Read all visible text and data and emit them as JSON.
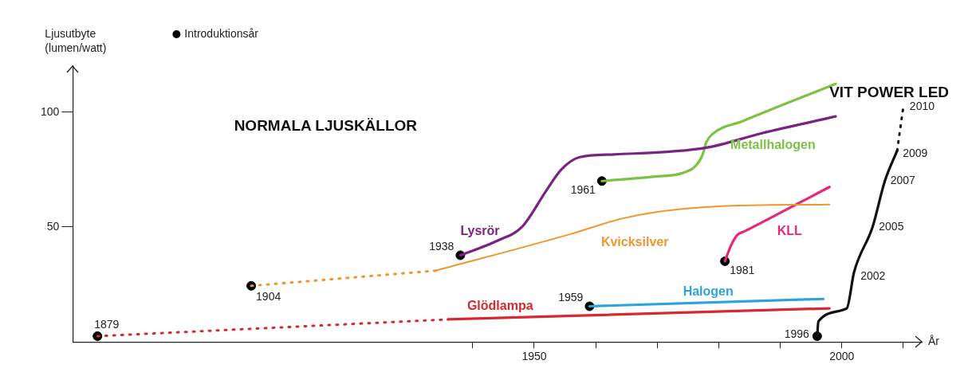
{
  "chart_data": {
    "type": "line",
    "xlabel": "År",
    "ylabel": "Ljusutbyte (lumen/watt)",
    "xlim": [
      1875,
      2013
    ],
    "ylim": [
      0,
      120
    ],
    "xticks": [
      {
        "value": 1940,
        "label": null
      },
      1950,
      {
        "value": 1960,
        "label": null
      },
      {
        "value": 1970,
        "label": null
      },
      {
        "value": 1980,
        "label": null
      },
      {
        "value": 1990,
        "label": null
      },
      2000,
      {
        "value": 2010,
        "label": null
      }
    ],
    "yticks": [
      50,
      100
    ],
    "legend": "top left",
    "series": [
      {
        "color": "#d7282f",
        "line_style": "dotted",
        "x": [
          1879,
          1936
        ],
        "values": [
          2.5,
          9.8
        ]
      },
      {
        "name": "Glödlampa",
        "color": "#d7282f",
        "x": [
          1936,
          1998
        ],
        "values": [
          9.8,
          14.6
        ]
      },
      {
        "color": "#f0962e",
        "line_style": "dotted",
        "x": [
          1904,
          1934
        ],
        "values": [
          24.4,
          31
        ]
      },
      {
        "name": "Kvicksilver",
        "color": "#f0962e",
        "x": [
          1934,
          1956,
          1964,
          1970,
          1980,
          1998
        ],
        "values": [
          31,
          47,
          53.5,
          56.6,
          59,
          59.8
        ]
      },
      {
        "name": "Lysrör",
        "color": "#7b2382",
        "x": [
          1938,
          1944,
          1948,
          1952,
          1954.4,
          1957.4,
          1963,
          1978,
          1987,
          1999
        ],
        "values": [
          37.7,
          44,
          50,
          66,
          75,
          80.4,
          81.6,
          84.5,
          90.8,
          98.1
        ]
      },
      {
        "name": "Halogen",
        "color": "#2aa3e0",
        "x": [
          1959,
          1997
        ],
        "values": [
          15.5,
          18.7
        ]
      },
      {
        "name": "Metallhalogen",
        "color": "#7dc242",
        "x": [
          1961,
          1969,
          1975.5,
          1977.3,
          1978,
          1979,
          1984,
          1999
        ],
        "values": [
          70,
          71.8,
          75,
          81,
          87,
          90.5,
          96.2,
          112.3
        ]
      },
      {
        "name": "KLL",
        "color": "#e6287a",
        "x": [
          1981,
          1982,
          1983,
          1984.2,
          1998
        ],
        "values": [
          35.1,
          42,
          46.5,
          48.1,
          67.4
        ]
      },
      {
        "name": "VIT POWER LED",
        "color": "#111111",
        "x": [
          1996,
          1996.2,
          2000.8,
          2002,
          2005,
          2007,
          2009
        ],
        "values": [
          2.5,
          8.9,
          14.6,
          30.4,
          50,
          70,
          83.2
        ]
      },
      {
        "color": "#111111",
        "line_style": "dotted",
        "x": [
          2009,
          2010
        ],
        "values": [
          83.2,
          102.2
        ]
      },
      {
        "name": "Introduktionsår",
        "type": "scatter",
        "marker": "circle",
        "color": "#000000",
        "x": [
          1879,
          1904,
          1938,
          1959,
          1961,
          1981,
          1996
        ],
        "values": [
          2.5,
          24.4,
          37.7,
          15.5,
          70,
          35.1,
          2.5
        ]
      }
    ],
    "annotations": [
      "NORMALA LJUSKÄLLOR",
      {
        "text": "1879",
        "x": 1879,
        "y": 2.5
      },
      {
        "text": "1904",
        "x": 1904,
        "y": 24.4
      },
      {
        "text": "1938",
        "x": 1938,
        "y": 37.7
      },
      {
        "text": "1959",
        "x": 1959,
        "y": 15.5
      },
      {
        "text": "1961",
        "x": 1961,
        "y": 70
      },
      {
        "text": "1981",
        "x": 1981,
        "y": 35.1
      },
      {
        "text": "1996",
        "x": 1996,
        "y": 2.5
      },
      {
        "text": "2002",
        "x": 2002,
        "y": 30.4
      },
      {
        "text": "2005",
        "x": 2005,
        "y": 50
      },
      {
        "text": "2007",
        "x": 2007,
        "y": 70
      },
      {
        "text": "2009",
        "x": 2009,
        "y": 83.2
      },
      {
        "text": "2010",
        "x": 2010,
        "y": 102.2
      }
    ]
  }
}
